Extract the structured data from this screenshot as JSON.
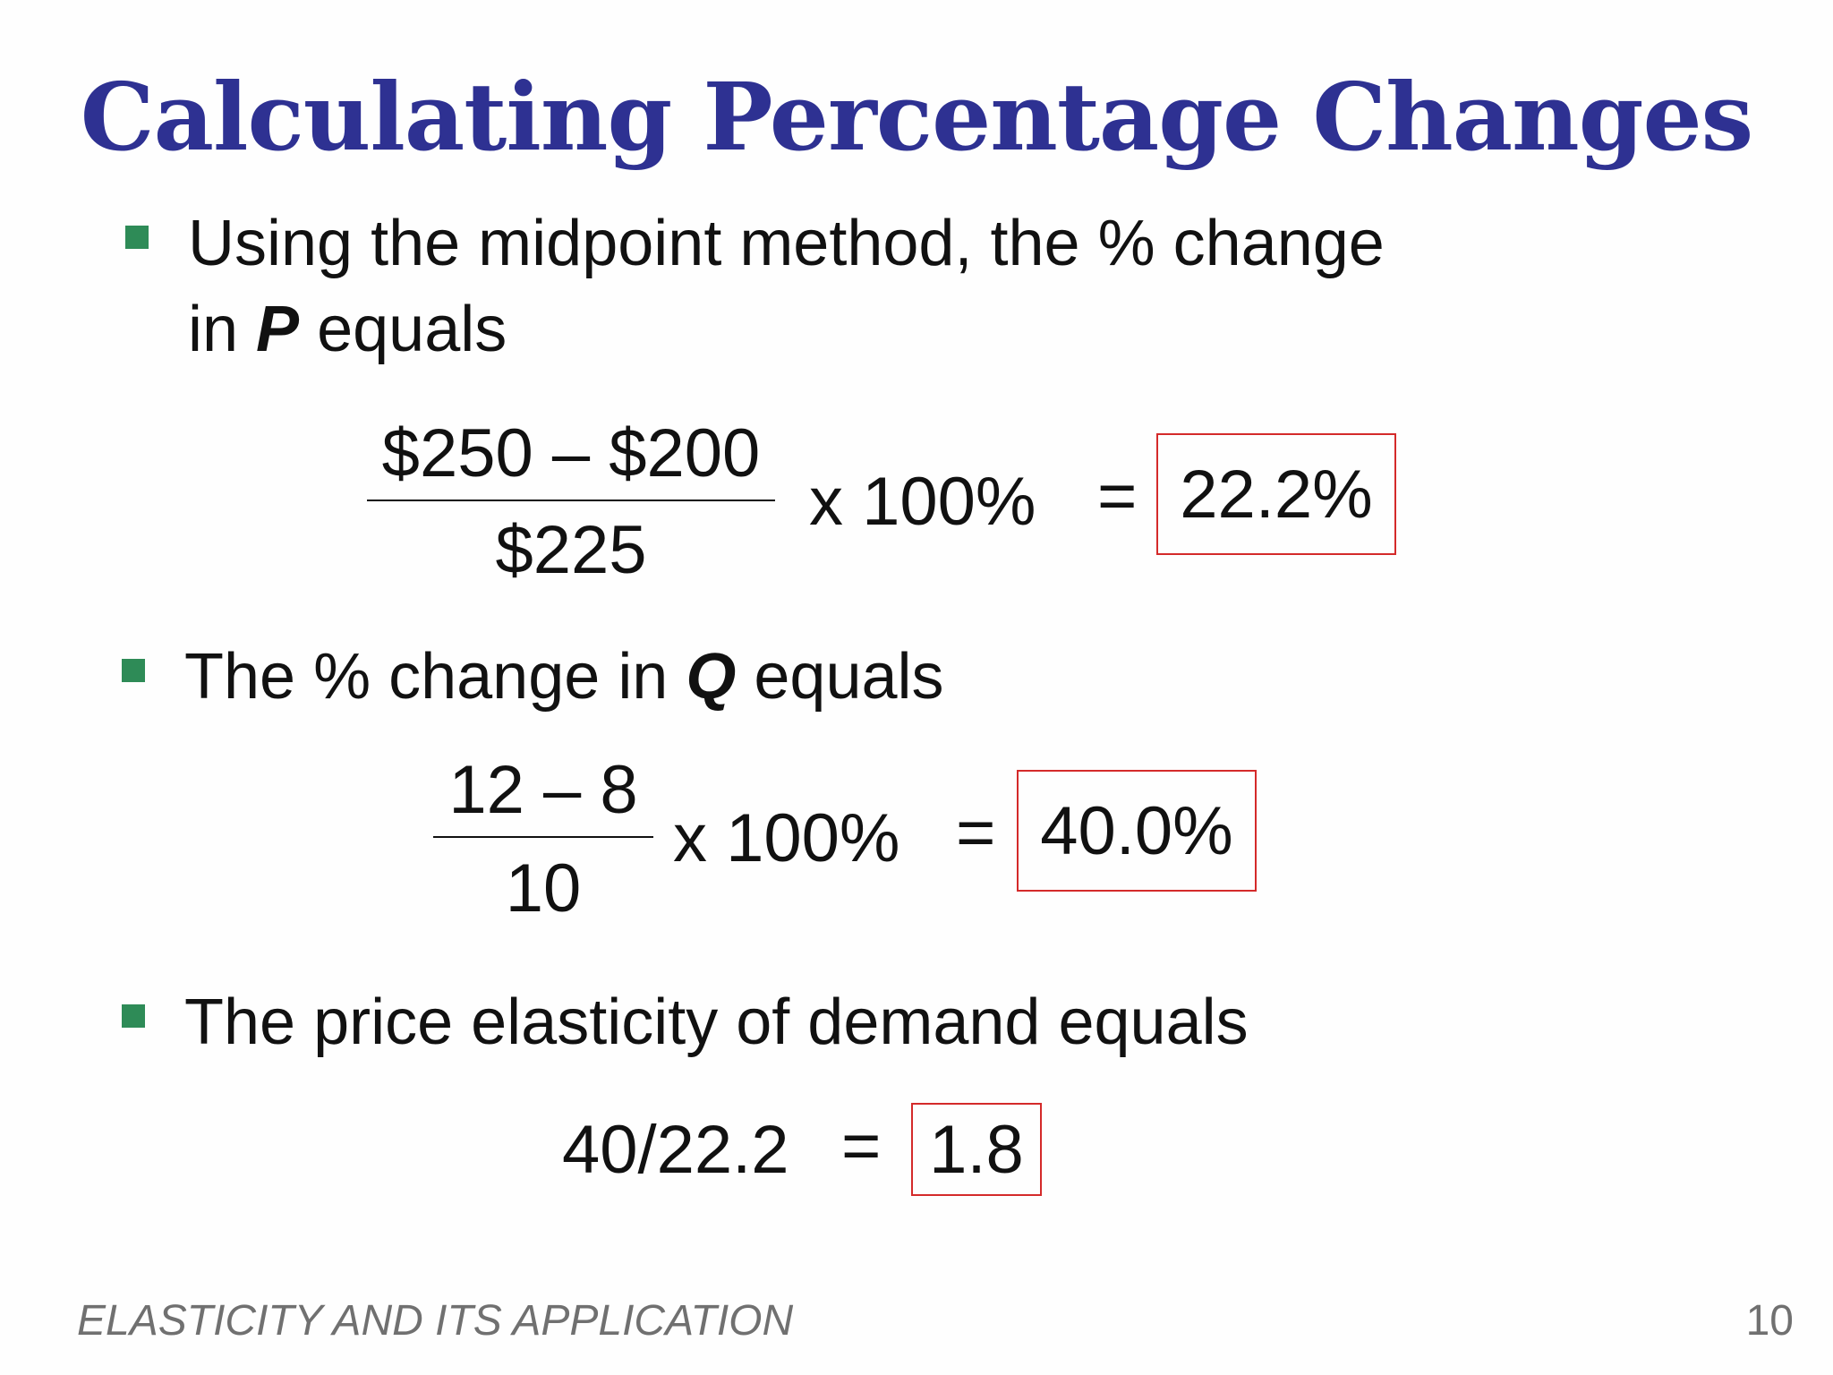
{
  "slide": {
    "title": "Calculating Percentage Changes",
    "footer": "ELASTICITY AND ITS APPLICATION",
    "page_number": "10"
  },
  "bullets": [
    {
      "line1": "Using the midpoint method, the % change",
      "line2_prefix": "in ",
      "variable": "P",
      "line2_suffix": " equals"
    },
    {
      "prefix": "The % change in ",
      "variable": "Q",
      "suffix": " equals"
    },
    {
      "text": "The price elasticity of demand equals"
    }
  ],
  "price_change": {
    "numerator": "$250 – $200",
    "denominator": "$225",
    "multiplier": "x 100%",
    "equals": "=",
    "result": "22.2%"
  },
  "quantity_change": {
    "numerator": "12 – 8",
    "denominator": "10",
    "multiplier": "x 100%",
    "equals": "=",
    "result": "40.0%"
  },
  "elasticity": {
    "expression": "40/22.2",
    "equals": "=",
    "result": "1.8"
  },
  "colors": {
    "title": "#2e3192",
    "bullet": "#2e8b57",
    "result_border": "#d42a2a",
    "footer": "#707070"
  }
}
